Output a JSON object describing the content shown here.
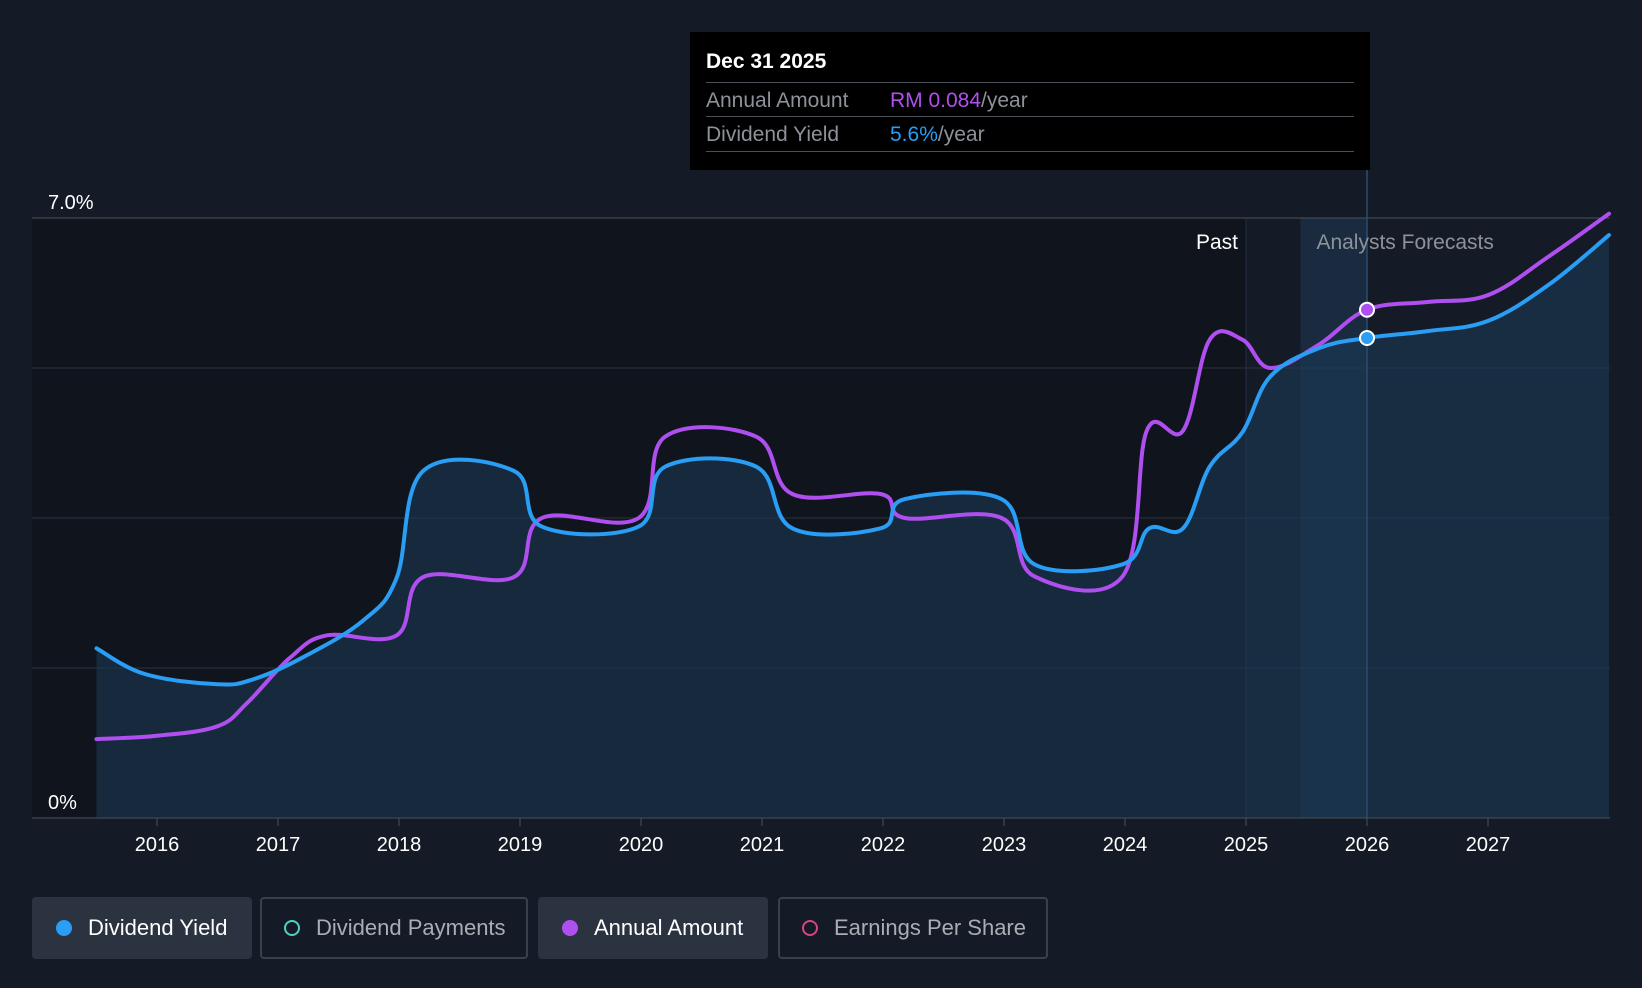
{
  "tooltip": {
    "date": "Dec 31 2025",
    "annual_label": "Annual Amount",
    "annual_value": "RM 0.084",
    "annual_unit": "/year",
    "yield_label": "Dividend Yield",
    "yield_value": "5.6%",
    "yield_unit": "/year"
  },
  "regions": {
    "past_label": "Past",
    "forecast_label": "Analysts Forecasts"
  },
  "legend": [
    {
      "label": "Dividend Yield",
      "color": "#2a9df4",
      "filled": true,
      "active": true
    },
    {
      "label": "Dividend Payments",
      "color": "#4fd1c5",
      "filled": false,
      "active": false
    },
    {
      "label": "Annual Amount",
      "color": "#b04ff0",
      "filled": true,
      "active": true
    },
    {
      "label": "Earnings Per Share",
      "color": "#d6457c",
      "filled": false,
      "active": false
    }
  ],
  "chart_data": {
    "type": "line",
    "ylim": [
      0,
      7
    ],
    "y_tick_labels": [
      "0%",
      "7.0%"
    ],
    "x_ticks": [
      2016,
      2017,
      2018,
      2019,
      2020,
      2021,
      2022,
      2023,
      2024,
      2025,
      2026,
      2027
    ],
    "past_end": 2025.0,
    "forecast_band": [
      2025.45,
      2026.0
    ],
    "highlight_x": 2026.0,
    "series": [
      {
        "name": "Dividend Yield",
        "color": "#2a9df4",
        "area": true,
        "points": [
          [
            2015.5,
            1.98
          ],
          [
            2015.9,
            1.68
          ],
          [
            2016.5,
            1.56
          ],
          [
            2016.8,
            1.62
          ],
          [
            2017.2,
            1.87
          ],
          [
            2017.7,
            2.3
          ],
          [
            2017.98,
            2.8
          ],
          [
            2018.2,
            4.05
          ],
          [
            2018.95,
            4.05
          ],
          [
            2019.18,
            3.4
          ],
          [
            2019.98,
            3.4
          ],
          [
            2020.2,
            4.1
          ],
          [
            2020.95,
            4.1
          ],
          [
            2021.25,
            3.38
          ],
          [
            2021.98,
            3.38
          ],
          [
            2022.18,
            3.72
          ],
          [
            2022.98,
            3.72
          ],
          [
            2023.25,
            2.96
          ],
          [
            2023.98,
            2.96
          ],
          [
            2024.2,
            3.38
          ],
          [
            2024.48,
            3.38
          ],
          [
            2024.7,
            4.1
          ],
          [
            2024.97,
            4.5
          ],
          [
            2025.2,
            5.15
          ],
          [
            2025.6,
            5.48
          ],
          [
            2026.0,
            5.6
          ],
          [
            2026.5,
            5.68
          ],
          [
            2027.0,
            5.8
          ],
          [
            2027.5,
            6.22
          ],
          [
            2028.0,
            6.8
          ]
        ]
      },
      {
        "name": "Annual Amount",
        "color": "#b04ff0",
        "area": false,
        "points": [
          [
            2015.5,
            0.92
          ],
          [
            2016.0,
            0.96
          ],
          [
            2016.5,
            1.07
          ],
          [
            2016.75,
            1.35
          ],
          [
            2017.1,
            1.87
          ],
          [
            2017.4,
            2.13
          ],
          [
            2017.98,
            2.13
          ],
          [
            2018.2,
            2.81
          ],
          [
            2018.95,
            2.81
          ],
          [
            2019.18,
            3.5
          ],
          [
            2019.98,
            3.5
          ],
          [
            2020.2,
            4.45
          ],
          [
            2020.95,
            4.45
          ],
          [
            2021.25,
            3.78
          ],
          [
            2021.98,
            3.78
          ],
          [
            2022.18,
            3.5
          ],
          [
            2022.98,
            3.5
          ],
          [
            2023.25,
            2.82
          ],
          [
            2023.98,
            2.82
          ],
          [
            2024.18,
            4.52
          ],
          [
            2024.48,
            4.52
          ],
          [
            2024.7,
            5.58
          ],
          [
            2024.97,
            5.58
          ],
          [
            2025.2,
            5.25
          ],
          [
            2025.6,
            5.52
          ],
          [
            2026.0,
            5.93
          ],
          [
            2026.5,
            6.02
          ],
          [
            2027.0,
            6.1
          ],
          [
            2027.5,
            6.55
          ],
          [
            2028.0,
            7.05
          ]
        ]
      }
    ],
    "markers": [
      {
        "series": "Annual Amount",
        "x": 2026.0,
        "y": 5.93
      },
      {
        "series": "Dividend Yield",
        "x": 2026.0,
        "y": 5.6
      }
    ]
  }
}
